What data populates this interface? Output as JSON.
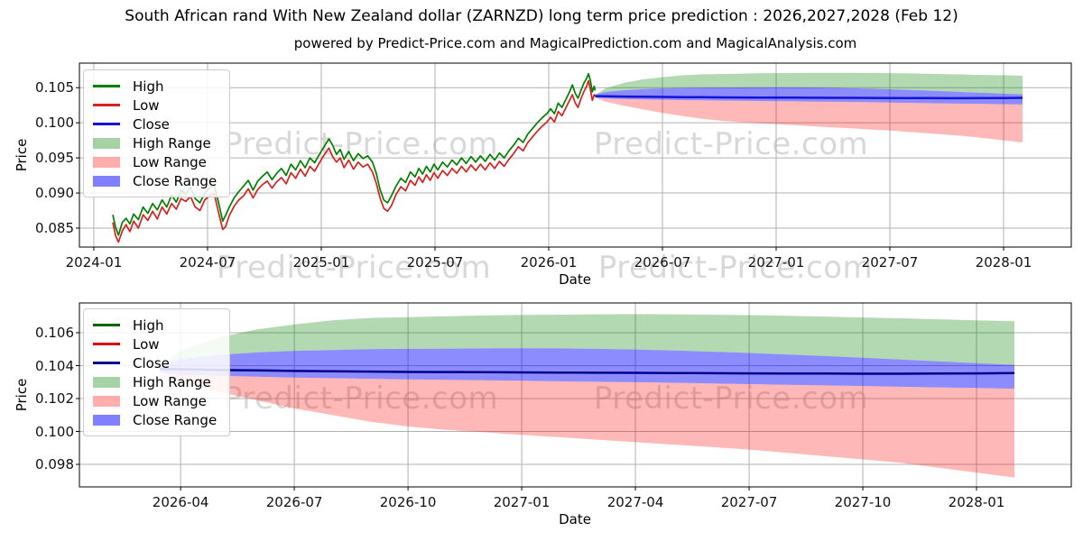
{
  "figure": {
    "title": "South African rand With New Zealand dollar (ZARNZD) long term price prediction : 2026,2027,2028 (Feb 12)",
    "axes_title": "powered by Predict-Price.com and MagicalPrediction.com and MagicalAnalysis.com",
    "watermark_text": "Predict-Price.com",
    "background": "#ffffff"
  },
  "colors": {
    "grid": "#b0b0b0",
    "spine": "#000000",
    "history_high_line": "#008000",
    "history_low_line": "#d62121",
    "close_line_main": "#1414d6",
    "close_line_forecast": "#00008b",
    "high_band": "rgba(0,128,0,0.30)",
    "low_band": "rgba(255,0,0,0.28)",
    "close_band": "rgba(0,0,255,0.45)",
    "watermark": "rgba(125,125,125,0.30)"
  },
  "chart_data": {
    "type": "line",
    "x_unit": "months since 2024-01",
    "charts": [
      {
        "name": "history-and-forecast",
        "ylabel": "Price",
        "xlabel": "Date",
        "xlim_m": [
          -0.76,
          51.57
        ],
        "ylim": [
          0.0823,
          0.1085
        ],
        "grid": true,
        "legend_position": "upper left",
        "xticks": [
          {
            "m": 0,
            "label": "2024-01"
          },
          {
            "m": 6,
            "label": "2024-07"
          },
          {
            "m": 12,
            "label": "2025-01"
          },
          {
            "m": 18,
            "label": "2025-07"
          },
          {
            "m": 24,
            "label": "2026-01"
          },
          {
            "m": 30,
            "label": "2026-07"
          },
          {
            "m": 36,
            "label": "2027-01"
          },
          {
            "m": 42,
            "label": "2027-07"
          },
          {
            "m": 48,
            "label": "2028-01"
          }
        ],
        "yticks": [
          {
            "v": 0.085,
            "label": "0.085"
          },
          {
            "v": 0.09,
            "label": "0.090"
          },
          {
            "v": 0.095,
            "label": "0.095"
          },
          {
            "v": 0.1,
            "label": "0.100"
          },
          {
            "v": 0.105,
            "label": "0.105"
          }
        ],
        "legend": [
          {
            "label": "High",
            "swatch": "line",
            "color": "#008000"
          },
          {
            "label": "Low",
            "swatch": "line",
            "color": "#d62121"
          },
          {
            "label": "Close",
            "swatch": "line",
            "color": "#1414d6"
          },
          {
            "label": "High Range",
            "swatch": "patch",
            "color": "rgba(0,128,0,0.35)"
          },
          {
            "label": "Low Range",
            "swatch": "patch",
            "color": "rgba(255,0,0,0.32)"
          },
          {
            "label": "Close Range",
            "swatch": "patch",
            "color": "rgba(0,0,255,0.50)"
          }
        ]
      },
      {
        "name": "forecast-detail",
        "ylabel": "Price",
        "xlabel": "Date",
        "xlim_m": [
          24.33,
          50.5
        ],
        "ylim": [
          0.09663,
          0.10781
        ],
        "grid": true,
        "legend_position": "upper left",
        "xticks": [
          {
            "m": 27,
            "label": "2026-04"
          },
          {
            "m": 30,
            "label": "2026-07"
          },
          {
            "m": 33,
            "label": "2026-10"
          },
          {
            "m": 36,
            "label": "2027-01"
          },
          {
            "m": 39,
            "label": "2027-04"
          },
          {
            "m": 42,
            "label": "2027-07"
          },
          {
            "m": 45,
            "label": "2027-10"
          },
          {
            "m": 48,
            "label": "2028-01"
          }
        ],
        "yticks": [
          {
            "v": 0.098,
            "label": "0.098"
          },
          {
            "v": 0.1,
            "label": "0.100"
          },
          {
            "v": 0.102,
            "label": "0.102"
          },
          {
            "v": 0.104,
            "label": "0.104"
          },
          {
            "v": 0.106,
            "label": "0.106"
          }
        ],
        "legend": [
          {
            "label": "High",
            "swatch": "line",
            "color": "#006400"
          },
          {
            "label": "Low",
            "swatch": "line",
            "color": "#dd0000"
          },
          {
            "label": "Close",
            "swatch": "line",
            "color": "#00008b"
          },
          {
            "label": "High Range",
            "swatch": "patch",
            "color": "rgba(0,128,0,0.35)"
          },
          {
            "label": "Low Range",
            "swatch": "patch",
            "color": "rgba(255,0,0,0.32)"
          },
          {
            "label": "Close Range",
            "swatch": "patch",
            "color": "rgba(0,0,255,0.50)"
          }
        ]
      }
    ],
    "history": {
      "x_m": [
        1.0,
        1.15,
        1.3,
        1.5,
        1.7,
        1.9,
        2.1,
        2.35,
        2.6,
        2.85,
        3.1,
        3.35,
        3.6,
        3.85,
        4.1,
        4.35,
        4.6,
        4.85,
        5.1,
        5.35,
        5.6,
        5.85,
        6.1,
        6.35,
        6.6,
        6.8,
        6.95,
        7.15,
        7.4,
        7.65,
        7.9,
        8.15,
        8.4,
        8.65,
        8.9,
        9.15,
        9.4,
        9.65,
        9.9,
        10.15,
        10.4,
        10.65,
        10.9,
        11.15,
        11.4,
        11.65,
        11.9,
        12.15,
        12.4,
        12.6,
        12.8,
        13.0,
        13.2,
        13.45,
        13.7,
        13.95,
        14.2,
        14.45,
        14.7,
        14.9,
        15.1,
        15.3,
        15.5,
        15.7,
        15.95,
        16.2,
        16.45,
        16.7,
        16.95,
        17.15,
        17.35,
        17.55,
        17.75,
        17.95,
        18.15,
        18.4,
        18.65,
        18.9,
        19.15,
        19.4,
        19.65,
        19.9,
        20.15,
        20.4,
        20.65,
        20.9,
        21.15,
        21.4,
        21.65,
        21.9,
        22.15,
        22.4,
        22.65,
        22.9,
        23.15,
        23.4,
        23.65,
        23.9,
        24.1,
        24.3,
        24.5,
        24.7,
        24.9,
        25.1,
        25.25,
        25.4,
        25.55,
        25.7,
        25.85,
        26.0,
        26.1,
        26.2,
        26.3,
        26.4,
        26.45
      ],
      "high": [
        0.0869,
        0.0851,
        0.084,
        0.0858,
        0.0864,
        0.0856,
        0.087,
        0.0862,
        0.088,
        0.0871,
        0.0885,
        0.0876,
        0.089,
        0.088,
        0.0897,
        0.0887,
        0.0904,
        0.0898,
        0.0908,
        0.0892,
        0.0886,
        0.09,
        0.0907,
        0.0911,
        0.0884,
        0.086,
        0.0868,
        0.088,
        0.0893,
        0.0902,
        0.091,
        0.0918,
        0.0904,
        0.0917,
        0.0924,
        0.093,
        0.0919,
        0.0928,
        0.0935,
        0.0925,
        0.0941,
        0.0933,
        0.0946,
        0.0936,
        0.095,
        0.0943,
        0.0955,
        0.0966,
        0.0977,
        0.0968,
        0.0955,
        0.0962,
        0.0948,
        0.0959,
        0.0946,
        0.0956,
        0.0949,
        0.0953,
        0.0944,
        0.0928,
        0.0905,
        0.089,
        0.0886,
        0.0896,
        0.091,
        0.0921,
        0.0915,
        0.093,
        0.0923,
        0.0935,
        0.0927,
        0.0938,
        0.093,
        0.0941,
        0.0933,
        0.0944,
        0.0937,
        0.0947,
        0.094,
        0.095,
        0.0942,
        0.0952,
        0.0944,
        0.0953,
        0.0945,
        0.0955,
        0.0947,
        0.0957,
        0.095,
        0.096,
        0.0968,
        0.0978,
        0.0972,
        0.0984,
        0.0992,
        0.1,
        0.1007,
        0.1013,
        0.102,
        0.1013,
        0.1028,
        0.1022,
        0.1033,
        0.1044,
        0.1054,
        0.1042,
        0.1035,
        0.1046,
        0.1056,
        0.1063,
        0.107,
        0.106,
        0.1044,
        0.1052,
        0.1046
      ],
      "low": [
        0.0858,
        0.0839,
        0.083,
        0.0846,
        0.0855,
        0.0845,
        0.086,
        0.085,
        0.0869,
        0.0861,
        0.0874,
        0.0863,
        0.088,
        0.087,
        0.0885,
        0.0877,
        0.0892,
        0.0888,
        0.0895,
        0.088,
        0.0875,
        0.089,
        0.0896,
        0.0899,
        0.087,
        0.0848,
        0.0852,
        0.0868,
        0.0881,
        0.089,
        0.0896,
        0.0906,
        0.0893,
        0.0905,
        0.0912,
        0.0917,
        0.0907,
        0.0916,
        0.0922,
        0.0913,
        0.0929,
        0.0921,
        0.0934,
        0.0924,
        0.0938,
        0.0931,
        0.0943,
        0.0954,
        0.0964,
        0.0952,
        0.0944,
        0.095,
        0.0936,
        0.0947,
        0.0934,
        0.0944,
        0.0937,
        0.0941,
        0.093,
        0.0914,
        0.0893,
        0.0878,
        0.0874,
        0.0882,
        0.0898,
        0.0909,
        0.0903,
        0.0918,
        0.0911,
        0.0923,
        0.0915,
        0.0926,
        0.0918,
        0.0929,
        0.0921,
        0.0932,
        0.0925,
        0.0935,
        0.0928,
        0.0938,
        0.093,
        0.094,
        0.0932,
        0.0941,
        0.0933,
        0.0943,
        0.0935,
        0.0945,
        0.0938,
        0.0948,
        0.0956,
        0.0966,
        0.096,
        0.0972,
        0.098,
        0.0988,
        0.0995,
        0.1001,
        0.1008,
        0.1001,
        0.1016,
        0.101,
        0.1021,
        0.1032,
        0.104,
        0.1028,
        0.1022,
        0.1034,
        0.1044,
        0.1052,
        0.106,
        0.1047,
        0.1032,
        0.104,
        0.1038
      ]
    },
    "prediction": {
      "x_m": [
        26.45,
        27,
        28,
        29,
        30,
        31,
        32,
        33,
        34,
        35,
        36,
        37,
        38,
        39,
        40,
        41,
        42,
        43,
        44,
        45,
        46,
        47,
        48,
        49
      ],
      "close": [
        0.1038,
        0.10378,
        0.10374,
        0.10371,
        0.10368,
        0.10366,
        0.10364,
        0.10362,
        0.10361,
        0.1036,
        0.10359,
        0.10358,
        0.10357,
        0.10356,
        0.10355,
        0.10354,
        0.10353,
        0.10352,
        0.10352,
        0.10351,
        0.10351,
        0.10352,
        0.10353,
        0.10355
      ],
      "close_upper": [
        0.104,
        0.1044,
        0.10465,
        0.1048,
        0.1049,
        0.10495,
        0.105,
        0.10502,
        0.10503,
        0.10505,
        0.10506,
        0.10505,
        0.10502,
        0.10498,
        0.10492,
        0.10485,
        0.10477,
        0.10468,
        0.10458,
        0.10448,
        0.10437,
        0.10426,
        0.10415,
        0.10405
      ],
      "close_lower": [
        0.1036,
        0.10345,
        0.10338,
        0.10333,
        0.10328,
        0.10324,
        0.1032,
        0.10317,
        0.10314,
        0.10311,
        0.10308,
        0.10305,
        0.10302,
        0.10299,
        0.10296,
        0.10292,
        0.10288,
        0.10284,
        0.1028,
        0.10276,
        0.10272,
        0.10268,
        0.10264,
        0.1026
      ],
      "high_upper": [
        0.104,
        0.1049,
        0.1057,
        0.1062,
        0.1065,
        0.10675,
        0.1069,
        0.10695,
        0.107,
        0.10705,
        0.10708,
        0.1071,
        0.10712,
        0.10713,
        0.10712,
        0.1071,
        0.10707,
        0.10703,
        0.10698,
        0.10693,
        0.10688,
        0.10682,
        0.10676,
        0.1067
      ],
      "low_lower": [
        0.1036,
        0.103,
        0.1024,
        0.1019,
        0.1014,
        0.101,
        0.1006,
        0.1003,
        0.1001,
        0.09995,
        0.0998,
        0.09965,
        0.0995,
        0.09935,
        0.0992,
        0.09905,
        0.0989,
        0.0987,
        0.0985,
        0.0983,
        0.0981,
        0.0978,
        0.0975,
        0.0972
      ]
    }
  }
}
